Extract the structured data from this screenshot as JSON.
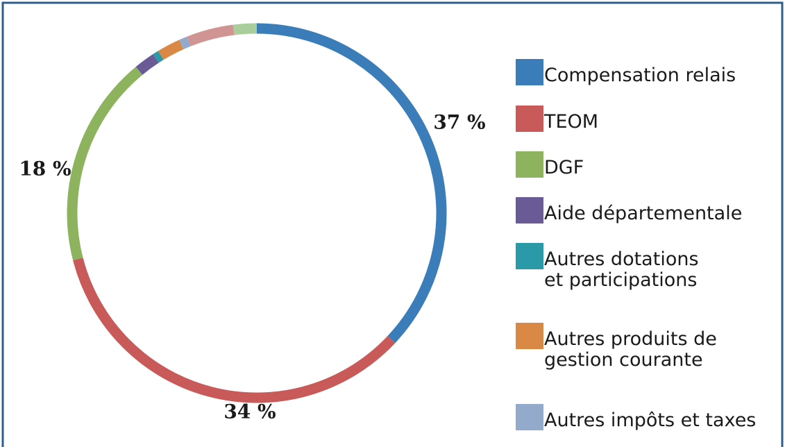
{
  "chart_data": {
    "type": "donut",
    "categories": [
      "Compensation relais",
      "TEOM",
      "DGF",
      "Aide départementale",
      "Autres dotations\net participations",
      "Autres produits de\ngestion courante",
      "Autres impôts et taxes",
      null,
      null
    ],
    "values": [
      37,
      34,
      18,
      1.8,
      0.5,
      2,
      0.7,
      4,
      2
    ],
    "value_labels": [
      "37 %",
      "34 %",
      "18 %",
      null,
      null,
      null,
      null,
      null,
      null
    ],
    "colors": [
      "#3a7db8",
      "#c85b59",
      "#8db35f",
      "#6a5b96",
      "#2a9aa9",
      "#d98945",
      "#93aacd",
      "#d09492",
      "#a9cd9b"
    ]
  }
}
